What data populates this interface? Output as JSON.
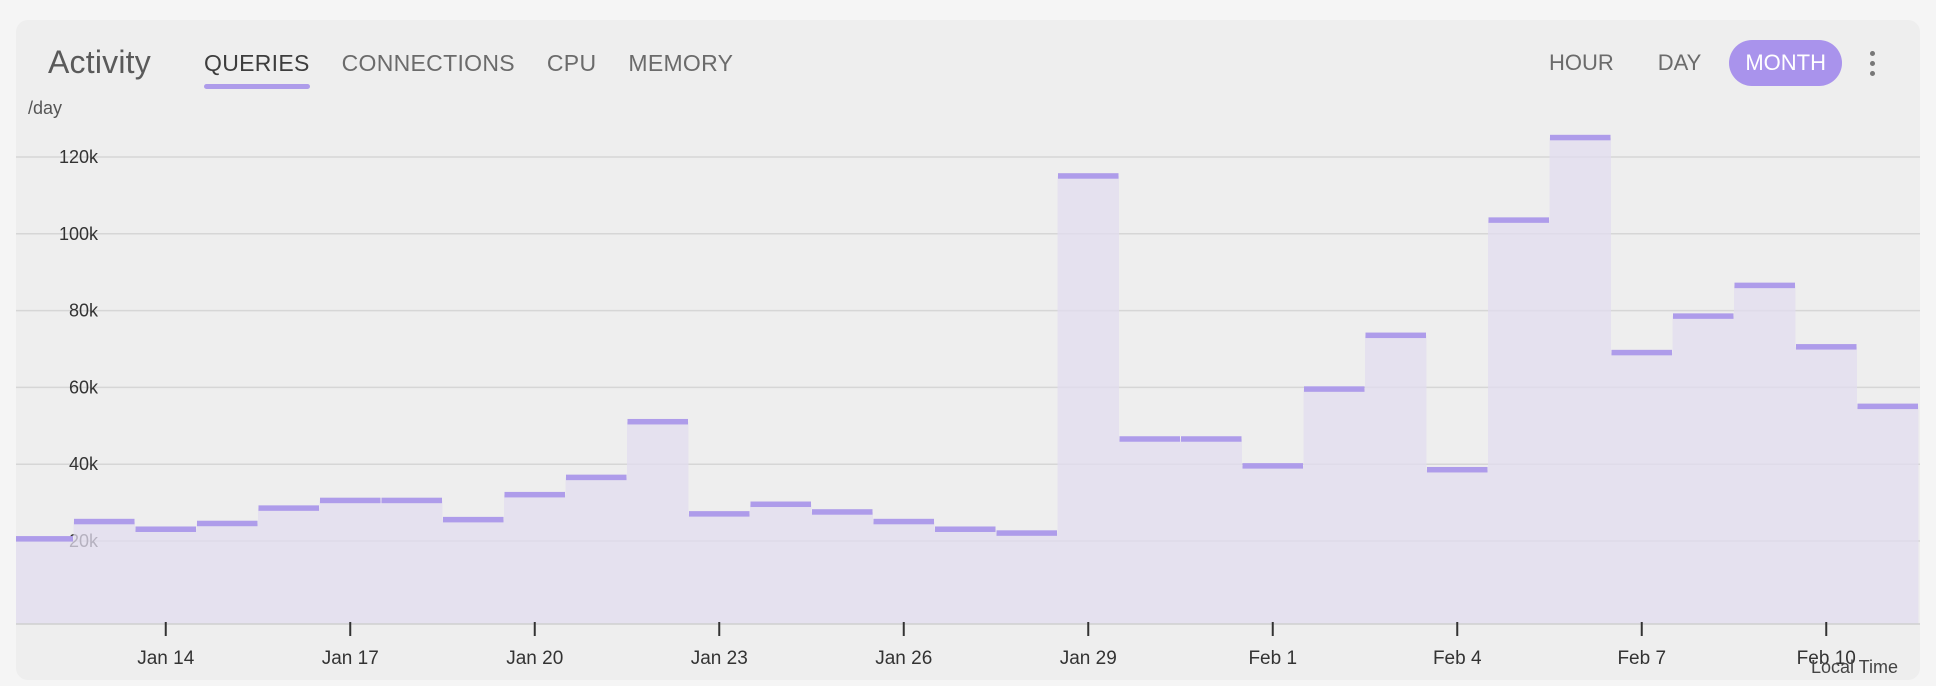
{
  "card": {
    "title": "Activity",
    "tabs": [
      {
        "label": "QUERIES",
        "active": true
      },
      {
        "label": "CONNECTIONS",
        "active": false
      },
      {
        "label": "CPU",
        "active": false
      },
      {
        "label": "MEMORY",
        "active": false
      }
    ],
    "ranges": [
      {
        "label": "HOUR",
        "active": false
      },
      {
        "label": "DAY",
        "active": false
      },
      {
        "label": "MONTH",
        "active": true
      }
    ],
    "menu_icon": "more-vertical-icon",
    "unit_label": "/day",
    "timezone_label": "Local Time"
  },
  "colors": {
    "accent": "#a993ec",
    "bar_line": "#ae9cea",
    "bar_fill": "#e2dcef",
    "grid": "#d6d6d6",
    "axis": "#333333"
  },
  "chart_data": {
    "type": "bar",
    "title": "",
    "xlabel": "",
    "ylabel": "/day",
    "x_tick_labels": [
      "Jan 14",
      "Jan 17",
      "Jan 20",
      "Jan 23",
      "Jan 26",
      "Jan 29",
      "Feb 1",
      "Feb 4",
      "Feb 7",
      "Feb 10"
    ],
    "y_tick_labels": [
      "20k",
      "40k",
      "60k",
      "80k",
      "100k",
      "120k"
    ],
    "y_ticks": [
      20000,
      40000,
      60000,
      80000,
      100000,
      120000
    ],
    "ylim": [
      0,
      128000
    ],
    "grid": true,
    "categories": [
      "Jan 12",
      "Jan 13",
      "Jan 14",
      "Jan 15",
      "Jan 16",
      "Jan 17",
      "Jan 18",
      "Jan 19",
      "Jan 20",
      "Jan 21",
      "Jan 22",
      "Jan 23",
      "Jan 24",
      "Jan 25",
      "Jan 26",
      "Jan 27",
      "Jan 28",
      "Jan 29",
      "Jan 30",
      "Jan 31",
      "Feb 1",
      "Feb 2",
      "Feb 3",
      "Feb 4",
      "Feb 5",
      "Feb 6",
      "Feb 7",
      "Feb 8",
      "Feb 9",
      "Feb 10",
      "Feb 11"
    ],
    "values": [
      20500,
      25000,
      23000,
      24500,
      28500,
      30500,
      30500,
      25500,
      32000,
      36500,
      51000,
      27000,
      29500,
      27500,
      25000,
      23000,
      22000,
      115000,
      46500,
      46500,
      39500,
      59500,
      73500,
      38500,
      103500,
      125000,
      69000,
      78500,
      86500,
      70500,
      55000
    ],
    "series": [
      {
        "values": [
          20500,
          25000,
          23000,
          24500,
          28500,
          30500,
          30500,
          25500,
          32000,
          36500,
          51000,
          27000,
          29500,
          27500,
          25000,
          23000,
          22000,
          115000,
          46500,
          46500,
          39500,
          59500,
          73500,
          38500,
          103500,
          125000,
          69000,
          78500,
          86500,
          70500,
          55000
        ]
      }
    ]
  }
}
